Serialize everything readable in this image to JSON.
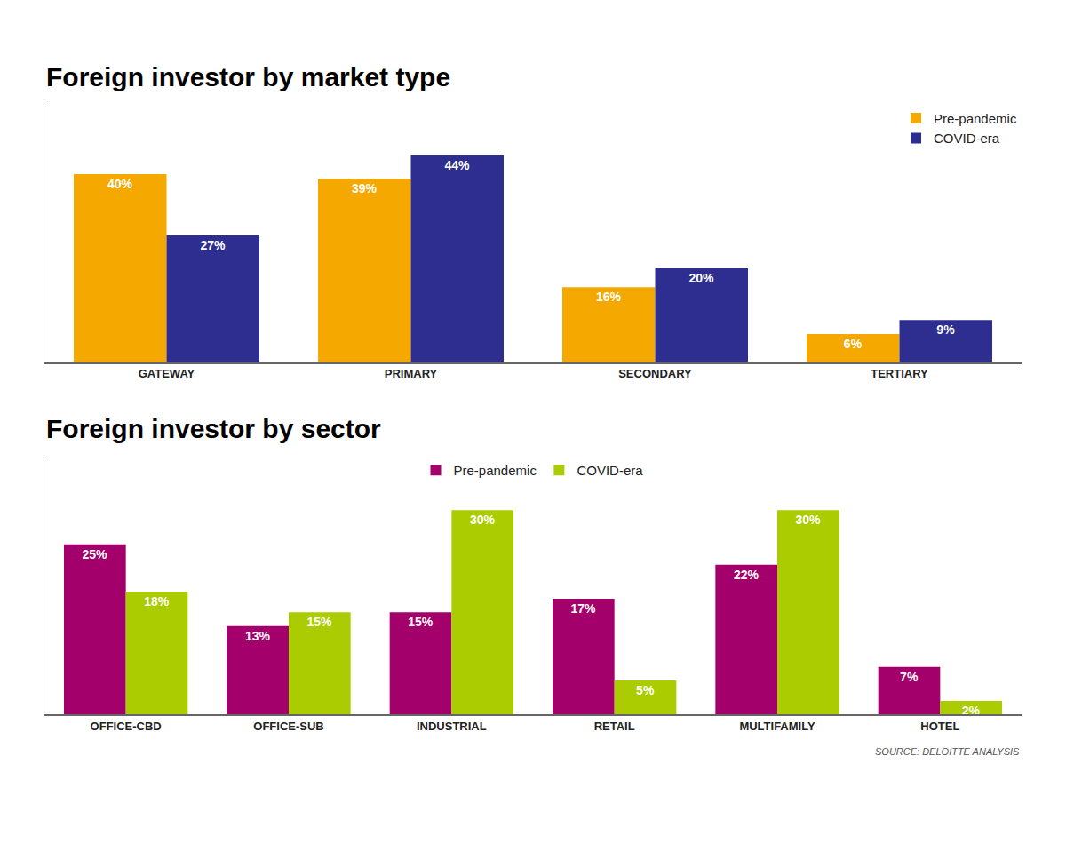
{
  "chart_data": [
    {
      "type": "bar",
      "title": "Foreign investor by market type",
      "categories": [
        "GATEWAY",
        "PRIMARY",
        "SECONDARY",
        "TERTIARY"
      ],
      "series": [
        {
          "name": "Pre-pandemic",
          "color": "#F5A800",
          "values": [
            40,
            39,
            16,
            6
          ],
          "value_labels": [
            "40%",
            "39%",
            "16%",
            "6%"
          ]
        },
        {
          "name": "COVID-era",
          "color": "#2D2E8F",
          "values": [
            27,
            44,
            20,
            9
          ],
          "value_labels": [
            "27%",
            "44%",
            "20%",
            "9%"
          ]
        }
      ],
      "ylim": [
        0,
        55
      ],
      "grid": false,
      "legend": "upper right",
      "data_labels": true,
      "tick_labels": "x"
    },
    {
      "type": "bar",
      "title": "Foreign investor by sector",
      "categories": [
        "OFFICE-CBD",
        "OFFICE-SUB",
        "INDUSTRIAL",
        "RETAIL",
        "MULTIFAMILY",
        "HOTEL"
      ],
      "series": [
        {
          "name": "Pre-pandemic",
          "color": "#A3006B",
          "values": [
            25,
            13,
            15,
            17,
            22,
            7
          ],
          "value_labels": [
            "25%",
            "13%",
            "15%",
            "17%",
            "22%",
            "7%"
          ]
        },
        {
          "name": "COVID-era",
          "color": "#AACC00",
          "values": [
            18,
            15,
            30,
            5,
            30,
            2
          ],
          "value_labels": [
            "18%",
            "15%",
            "30%",
            "5%",
            "30%",
            "2%"
          ]
        }
      ],
      "annotations": [
        "SOURCE: DELOITTE ANALYSIS"
      ],
      "ylim": [
        0,
        38
      ],
      "grid": false,
      "legend": "upper center",
      "data_labels": true,
      "tick_labels": "x"
    }
  ]
}
